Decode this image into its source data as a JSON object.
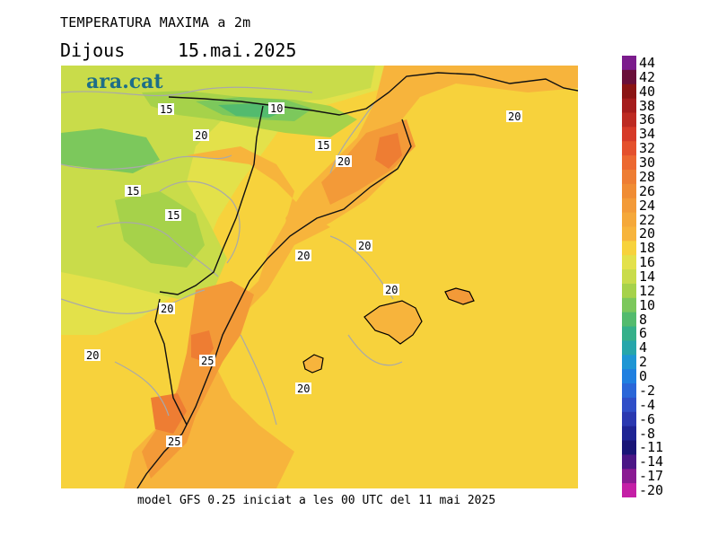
{
  "header": {
    "title": "TEMPERATURA MAXIMA a 2m",
    "day": "Dijous",
    "date": "15.mai.2025"
  },
  "footer": {
    "text": "model GFS 0.25 iniciat a les 00 UTC del 11 mai 2025"
  },
  "logo": {
    "text": "ara.cat"
  },
  "colors": {
    "sea_18_20": "#f7d23c",
    "land_20_22": "#f7b43c",
    "land_22_24": "#f39a38",
    "warm_24_26": "#ee7d33",
    "mild_16_18": "#e3e14a",
    "cool_14_16": "#c9dc4a",
    "cool_12_14": "#a6d24a",
    "cold_10_12": "#7cc85c",
    "cold_8_10": "#53bb6e"
  },
  "colorbar": {
    "labels": [
      "44",
      "42",
      "40",
      "38",
      "36",
      "34",
      "32",
      "30",
      "28",
      "26",
      "24",
      "22",
      "20",
      "18",
      "16",
      "14",
      "12",
      "10",
      "8",
      "6",
      "4",
      "2",
      "0",
      "-2",
      "-4",
      "-6",
      "-8",
      "-11",
      "-14",
      "-17",
      "-20"
    ],
    "colors": [
      "#7b1c8c",
      "#6a0f3a",
      "#8b1414",
      "#a51c1c",
      "#bd2a22",
      "#d63a28",
      "#e4502c",
      "#ec6830",
      "#ee7d33",
      "#f08c34",
      "#f39a38",
      "#f5a83a",
      "#f7b43c",
      "#f7d23c",
      "#e3e14a",
      "#c9dc4a",
      "#a6d24a",
      "#7cc85c",
      "#53bb6e",
      "#35b08a",
      "#26a6ab",
      "#1e96d4",
      "#1f7fe0",
      "#2a66d8",
      "#2f4ec8",
      "#2a38b0",
      "#1e2494",
      "#191577",
      "#4b1686",
      "#8a1a92",
      "#c41fa6"
    ]
  },
  "isotherm_labels": [
    "15",
    "10",
    "20",
    "15",
    "20",
    "15",
    "15",
    "20",
    "20",
    "20",
    "20",
    "25",
    "20",
    "20",
    "25",
    "20"
  ]
}
